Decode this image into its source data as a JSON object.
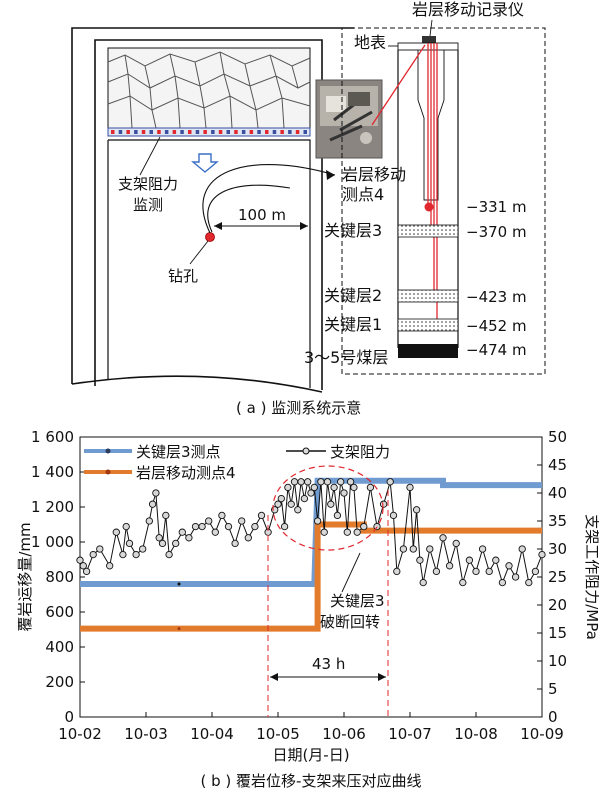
{
  "diagram": {
    "caption": "( a ) 监测系统示意",
    "instrument_label": "岩层移动记录仪",
    "surface_label": "地表",
    "support_label_line1": "支架阻力",
    "support_label_line2": "监测",
    "distance_label": "100 m",
    "borehole_label": "钻孔",
    "point_label_line1": "岩层移动",
    "point_label_line2": "测点4",
    "key_layer_3": "关键层3",
    "key_layer_2": "关键层2",
    "key_layer_1": "关键层1",
    "coal_seam": "3～5号煤层",
    "depths": [
      "−331 m",
      "−370 m",
      "−423 m",
      "−452 m",
      "−474 m"
    ]
  },
  "chart_data": {
    "type": "line",
    "caption": "( b ) 覆岩位移-支架来压对应曲线",
    "xlabel": "日期(月-日)",
    "ylabel_left": "覆岩运移量/mm",
    "ylabel_right": "支架工作阻力/MPa",
    "x_ticks": [
      "10-02",
      "10-03",
      "10-04",
      "10-05",
      "10-06",
      "10-07",
      "10-08",
      "10-09"
    ],
    "y_left_ticks": [
      "0",
      "200",
      "400",
      "600",
      "800",
      "1 000",
      "1 200",
      "1 400",
      "1 600"
    ],
    "y_right_ticks": [
      "0",
      "5",
      "10",
      "15",
      "20",
      "25",
      "30",
      "35",
      "40",
      "45",
      "50"
    ],
    "ylim_left": [
      0,
      1600
    ],
    "ylim_right": [
      0,
      50
    ],
    "legend": {
      "key_layer3": "关键层3测点",
      "point4": "岩层移动测点4",
      "support": "支架阻力"
    },
    "colors": {
      "key_layer3": "#6f9bd1",
      "point4": "#e37b2c",
      "support": "#111111",
      "annotation": "#e0282e"
    },
    "series": [
      {
        "name": "关键层3测点",
        "x": [
          2.0,
          5.55,
          5.6,
          7.5,
          7.5,
          9.0
        ],
        "y": [
          760,
          760,
          1350,
          1350,
          1325,
          1325
        ]
      },
      {
        "name": "岩层移动测点4",
        "x": [
          2.0,
          5.6,
          5.6,
          6.3,
          6.3,
          9.0
        ],
        "y": [
          505,
          505,
          1100,
          1100,
          1065,
          1065
        ]
      },
      {
        "name": "支架阻力",
        "x": [
          2.0,
          2.05,
          2.1,
          2.2,
          2.3,
          2.45,
          2.55,
          2.65,
          2.7,
          2.75,
          2.85,
          2.95,
          3.05,
          3.1,
          3.15,
          3.2,
          3.25,
          3.3,
          3.35,
          3.45,
          3.55,
          3.65,
          3.75,
          3.85,
          3.95,
          4.05,
          4.15,
          4.25,
          4.35,
          4.45,
          4.55,
          4.65,
          4.75,
          4.85,
          4.95,
          5.0,
          5.05,
          5.1,
          5.15,
          5.2,
          5.25,
          5.3,
          5.35,
          5.4,
          5.45,
          5.5,
          5.55,
          5.6,
          5.65,
          5.7,
          5.75,
          5.8,
          5.85,
          5.9,
          5.95,
          6.0,
          6.05,
          6.1,
          6.15,
          6.2,
          6.3,
          6.4,
          6.5,
          6.6,
          6.7,
          6.75,
          6.8,
          6.9,
          7.0,
          7.05,
          7.1,
          7.15,
          7.2,
          7.3,
          7.4,
          7.5,
          7.6,
          7.7,
          7.8,
          7.9,
          8.0,
          8.1,
          8.2,
          8.3,
          8.4,
          8.5,
          8.6,
          8.7,
          8.8,
          8.9,
          9.0
        ],
        "y": [
          28,
          27,
          26,
          29,
          30,
          27,
          33,
          29,
          34,
          31,
          29,
          30,
          35,
          38,
          40,
          32,
          31,
          36,
          29,
          31,
          33,
          32,
          34,
          34,
          35,
          33,
          36,
          34,
          31,
          35,
          32,
          34,
          36,
          33,
          37,
          38,
          39,
          34,
          41,
          38,
          42,
          37,
          42,
          39,
          42,
          40,
          41,
          35,
          42,
          33,
          42,
          38,
          41,
          36,
          42,
          40,
          33,
          42,
          41,
          33,
          34,
          41,
          34,
          38,
          42,
          36,
          26,
          30,
          41,
          30,
          37,
          28,
          24,
          30,
          26,
          32,
          27,
          31,
          24,
          28,
          26,
          30,
          26,
          28,
          24,
          27,
          25,
          30,
          24,
          26,
          29
        ]
      }
    ],
    "annotations": {
      "event": "关键层3\n破断回转",
      "interval": "43 h"
    }
  }
}
